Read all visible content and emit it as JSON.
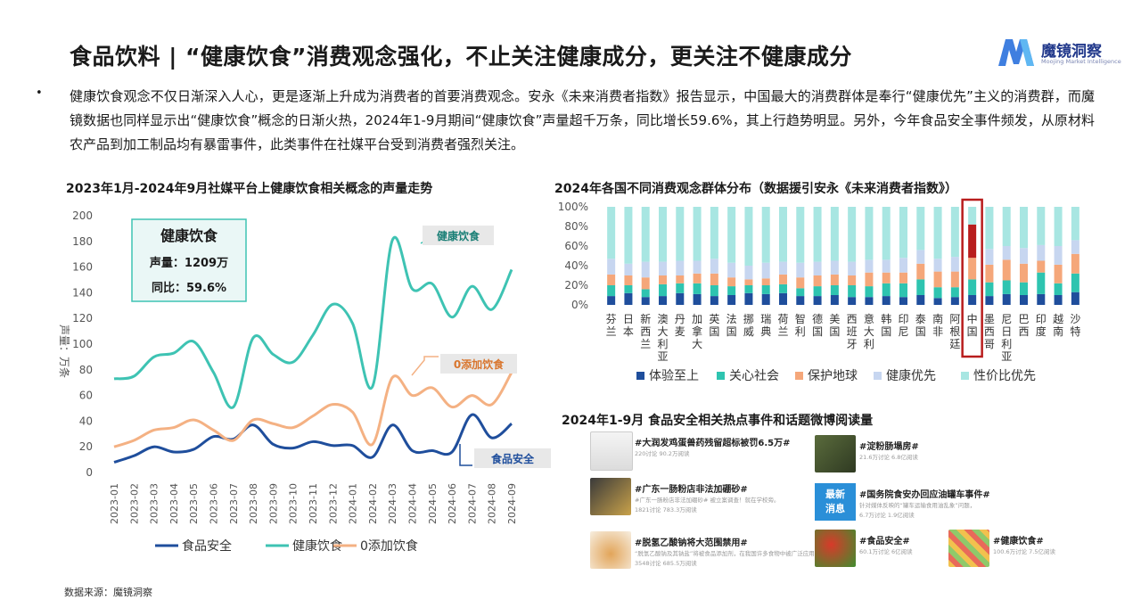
{
  "header": {
    "title": "食品饮料 | “健康饮食”消费观念强化，不止关注健康成分，更关注不健康成分",
    "logo_name": "魔镜洞察",
    "logo_sub": "Moojing Market Intelligence",
    "bullet": "•",
    "intro": "健康饮食观念不仅日渐深入人心，更是逐渐上升成为消费者的首要消费观念。安永《未来消费者指数》报告显示，中国最大的消费群体是奉行“健康优先”主义的消费群，而魔镜数据也同样显示出“健康饮食”概念的日渐火热，2024年1-9月期间“健康饮食”声量超千万条，同比增长59.6%，其上行趋势明显。另外，今年食品安全事件频发，从原材料农产品到加工制品均有暴雷事件，此类事件在社媒平台受到消费者强烈关注。"
  },
  "left_chart": {
    "section_title": "2023年1月-2024年9月社媒平台上健康饮食相关概念的声量走势",
    "callout": {
      "title": "健康饮食",
      "line1": "声量：1209万",
      "line2": "同比：59.6%"
    },
    "label_health": "健康饮食",
    "label_zero": "0添加饮食",
    "label_safety": "食品安全"
  },
  "right_chart": {
    "section_title": "2024年各国不同消费观念群体分布（数据援引安永《未来消费者指数》）"
  },
  "feed": {
    "section_title": "2024年1-9月 食品安全相关热点事件和话题微博阅读量",
    "news_badge": "最新\n消息",
    "items": [
      {
        "title": "#大润发鸡蛋兽药残留超标被罚6.5万#",
        "sub": "220讨论 90.2万阅读",
        "sub2": ""
      },
      {
        "title": "#淀粉肠塌房#",
        "sub": "21.6万讨论 6.8亿阅读",
        "sub2": ""
      },
      {
        "title": "#广东一肠粉店非法加硼砂#",
        "sub": "#广东一肠粉店非法加硼砂# 被立案调查！就在学校旁。",
        "sub2": "1821讨论 783.3万阅读"
      },
      {
        "title": "#国务院食安办回应油罐车事件#",
        "sub": "针对媒体反映的“罐车运输食用油乱象”问题，",
        "sub2": "6.7万讨论 1.9亿阅读"
      },
      {
        "title": "#脱氢乙酸钠将大范围禁用#",
        "sub": "“脱氢乙酸钠及其钠盐”将被食品添加剂，在我国许多食物中被广泛应用。",
        "sub2": "3548讨论 685.5万阅读"
      },
      {
        "title": "#食品安全#",
        "sub": "60.1万讨论 6亿阅读",
        "sub2": ""
      },
      {
        "title": "#健康饮食#",
        "sub": "100.6万讨论 7.5亿阅读",
        "sub2": ""
      }
    ]
  },
  "source_note": "数据来源：魔镜洞察",
  "colors": {
    "safety": "#1f4e9c",
    "health": "#3ec3b3",
    "zero": "#f4b183",
    "experience": "#1f4e9c",
    "social": "#2ec4b0",
    "earth": "#f5a77a",
    "healthfirst": "#c7d6f0",
    "value": "#a8e6e2",
    "highlight": "#b81d1d"
  },
  "chart_data": [
    {
      "type": "line",
      "title": "2023年1月-2024年9月社媒平台上健康饮食相关概念的声量走势",
      "ylabel": "声量：万条",
      "ylim": [
        0,
        200
      ],
      "yticks": [
        0,
        20,
        40,
        60,
        80,
        100,
        120,
        140,
        160,
        180,
        200
      ],
      "x": [
        "2023-01",
        "2023-02",
        "2023-03",
        "2023-04",
        "2023-05",
        "2023-06",
        "2023-07",
        "2023-08",
        "2023-09",
        "2023-10",
        "2023-11",
        "2023-12",
        "2024-01",
        "2024-02",
        "2024-03",
        "2024-04",
        "2024-05",
        "2024-06",
        "2024-07",
        "2024-08",
        "2024-09"
      ],
      "series": [
        {
          "name": "食品安全",
          "values": [
            8,
            13,
            20,
            16,
            18,
            28,
            26,
            37,
            22,
            19,
            24,
            21,
            21,
            12,
            37,
            17,
            17,
            16,
            45,
            27,
            38
          ]
        },
        {
          "name": "健康饮食",
          "values": [
            73,
            75,
            90,
            93,
            102,
            78,
            51,
            105,
            92,
            86,
            107,
            131,
            116,
            67,
            181,
            143,
            147,
            121,
            145,
            127,
            158
          ]
        },
        {
          "name": "0添加饮食",
          "values": [
            20,
            25,
            33,
            35,
            41,
            33,
            25,
            41,
            38,
            35,
            44,
            53,
            47,
            22,
            74,
            60,
            66,
            51,
            60,
            53,
            78
          ]
        }
      ],
      "legend": "bottom"
    },
    {
      "type": "bar",
      "stacked": true,
      "title": "2024年各国不同消费观念群体分布（数据援引安永《未来消费者指数》）",
      "ylim": [
        0,
        100
      ],
      "yticks": [
        "0%",
        "20%",
        "40%",
        "60%",
        "80%",
        "100%"
      ],
      "categories": [
        "芬兰",
        "日本",
        "新西兰",
        "澳大利亚",
        "丹麦",
        "加拿大",
        "英国",
        "法国",
        "挪威",
        "瑞典",
        "荷兰",
        "智利",
        "德国",
        "美国",
        "西班牙",
        "意大利",
        "韩国",
        "印尼",
        "泰国",
        "南非",
        "阿根廷",
        "中国",
        "墨西哥",
        "尼日利亚",
        "巴西",
        "印度",
        "越南",
        "沙特"
      ],
      "highlight": "中国",
      "series": [
        {
          "name": "体验至上",
          "values": [
            9,
            12,
            8,
            9,
            12,
            11,
            9,
            10,
            12,
            11,
            12,
            9,
            9,
            10,
            8,
            8,
            9,
            8,
            10,
            7,
            8,
            10,
            9,
            11,
            10,
            11,
            10,
            13
          ]
        },
        {
          "name": "关心社会",
          "values": [
            11,
            8,
            8,
            12,
            10,
            11,
            11,
            9,
            8,
            9,
            9,
            8,
            10,
            10,
            12,
            11,
            13,
            14,
            16,
            11,
            10,
            16,
            14,
            14,
            13,
            22,
            12,
            19
          ]
        },
        {
          "name": "保护地球",
          "values": [
            11,
            10,
            12,
            9,
            8,
            10,
            12,
            9,
            6,
            7,
            10,
            11,
            11,
            11,
            10,
            14,
            11,
            11,
            16,
            16,
            16,
            22,
            18,
            21,
            19,
            12,
            19,
            20
          ]
        },
        {
          "name": "健康优先",
          "values": [
            16,
            12,
            16,
            14,
            15,
            13,
            15,
            15,
            14,
            16,
            13,
            15,
            14,
            14,
            14,
            13,
            13,
            15,
            14,
            13,
            15,
            34,
            16,
            14,
            16,
            16,
            19,
            14
          ]
        },
        {
          "name": "性价比优先",
          "values": [
            53,
            58,
            56,
            56,
            55,
            55,
            53,
            57,
            60,
            57,
            56,
            57,
            56,
            55,
            56,
            54,
            54,
            52,
            44,
            53,
            51,
            18,
            43,
            40,
            42,
            39,
            40,
            34
          ]
        }
      ],
      "legend": "bottom"
    }
  ]
}
